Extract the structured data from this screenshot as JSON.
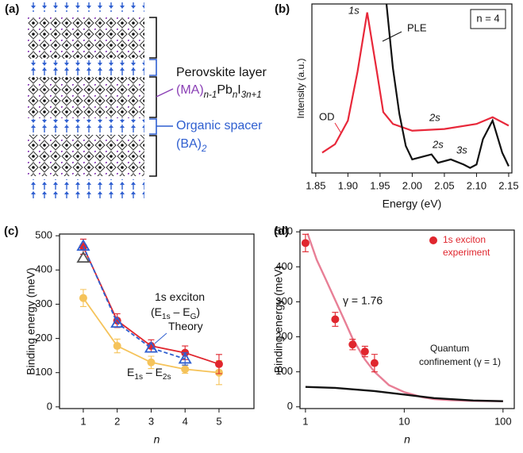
{
  "diagram": {
    "label": "(a)",
    "layer_label": "Perovskite layer",
    "layer_formula": [
      "(MA)",
      "n-1",
      "Pb",
      "n",
      "I",
      "3n+1"
    ],
    "spacer_label": "Organic spacer",
    "spacer_formula": [
      "(BA)",
      "2"
    ]
  },
  "chart_data": [
    {
      "type": "line",
      "panel_label": "(b)",
      "x_label": "Energy (eV)",
      "y_label": "Intensity (a.u.)",
      "xlim": [
        1.844,
        2.155
      ],
      "xticks": [
        1.85,
        {
          "value": 1.9,
          "label": "1.90"
        },
        1.95,
        {
          "value": 2.0,
          "label": "2.00"
        },
        2.05,
        {
          "value": 2.1,
          "label": "2.10"
        },
        2.15
      ],
      "ylim": [
        0,
        1
      ],
      "inset": "n = 4",
      "annotations": [
        "1s",
        "2s",
        "2s",
        "3s",
        "PLE",
        "OD"
      ],
      "series": [
        {
          "color": "#e8283a",
          "x": [
            1.86,
            1.88,
            1.9,
            1.915,
            1.93,
            1.945,
            1.955,
            1.97,
            2.0,
            2.05,
            2.1,
            2.125,
            2.15
          ],
          "values": [
            0.12,
            0.17,
            0.31,
            0.6,
            0.95,
            0.6,
            0.36,
            0.29,
            0.25,
            0.26,
            0.29,
            0.33,
            0.28
          ]
        },
        {
          "color": "#111111",
          "x": [
            1.96,
            1.97,
            1.98,
            1.99,
            2.0,
            2.02,
            2.03,
            2.04,
            2.06,
            2.08,
            2.09,
            2.1,
            2.11,
            2.125,
            2.14,
            2.15
          ],
          "values": [
            1.0,
            0.62,
            0.35,
            0.16,
            0.08,
            0.1,
            0.11,
            0.06,
            0.08,
            0.05,
            0.03,
            0.05,
            0.2,
            0.31,
            0.12,
            0.04
          ]
        }
      ]
    },
    {
      "type": "line",
      "panel_label": "(c)",
      "x_label": "n",
      "y_label": "Binding energy (meV)",
      "xlim": [
        0.3,
        6.03
      ],
      "xticks": [
        1,
        2,
        3,
        4,
        5
      ],
      "ylim": [
        -5,
        505
      ],
      "yticks": [
        0,
        100,
        200,
        300,
        400,
        500
      ],
      "annotations": [
        [
          "1s exciton"
        ],
        [
          "(E",
          "1s",
          " – E",
          "G",
          ")"
        ],
        [
          "Theory"
        ],
        [
          "E",
          "1s",
          " – E",
          "2s"
        ]
      ],
      "series": [
        {
          "color": "#f5c35a",
          "marker": "circle",
          "x": [
            1,
            2,
            3,
            4,
            5
          ],
          "values": [
            318,
            178,
            130,
            110,
            100
          ],
          "errors": [
            25,
            20,
            18,
            12,
            35
          ]
        },
        {
          "color": "#e0262e",
          "marker": "circle",
          "x": [
            1,
            2,
            3,
            4,
            5
          ],
          "values": [
            468,
            252,
            178,
            158,
            125
          ],
          "errors": [
            22,
            20,
            18,
            20,
            28
          ]
        },
        {
          "color": "#2f5fd0",
          "marker": "triangle",
          "dash": true,
          "x": [
            1,
            2,
            3,
            4
          ],
          "values": [
            470,
            245,
            172,
            140
          ],
          "errors": [
            null,
            null,
            null,
            18
          ]
        },
        {
          "color": "#555555",
          "marker": "triangle",
          "line": "none",
          "x": [
            1
          ],
          "values": [
            435
          ]
        }
      ]
    },
    {
      "type": "scatter",
      "panel_label": "(d)",
      "x_label": "n",
      "y_label": "Binding energy (meV)",
      "xscale": "log",
      "xlim": [
        0.88,
        130
      ],
      "xticks": [
        1,
        10,
        100
      ],
      "ylim": [
        -5,
        505
      ],
      "yticks": [
        0,
        100,
        200,
        300,
        400,
        500
      ],
      "annotations": [
        "γ = 1.76",
        "Quantum",
        "confinement (γ = 1)"
      ],
      "series": [
        {
          "color": "#e87f96",
          "x": [
            1.05,
            1.3,
            1.6,
            2,
            2.5,
            3,
            4,
            5,
            7,
            10,
            15,
            20,
            30,
            50,
            100
          ],
          "values": [
            495,
            420,
            365,
            305,
            245,
            195,
            135,
            100,
            62,
            42,
            28,
            22,
            19,
            17,
            16
          ]
        },
        {
          "color": "#111111",
          "x": [
            1,
            2,
            5,
            10,
            20,
            50,
            100
          ],
          "values": [
            57,
            54,
            45,
            35,
            25,
            18,
            16
          ]
        },
        {
          "name": [
            "1s exciton",
            "experiment"
          ],
          "color": "#e0262e",
          "marker": "circle",
          "line": "none",
          "x": [
            1,
            2,
            3,
            4,
            5
          ],
          "values": [
            468,
            250,
            178,
            158,
            125
          ],
          "errors": [
            25,
            20,
            15,
            15,
            25
          ]
        }
      ]
    }
  ]
}
